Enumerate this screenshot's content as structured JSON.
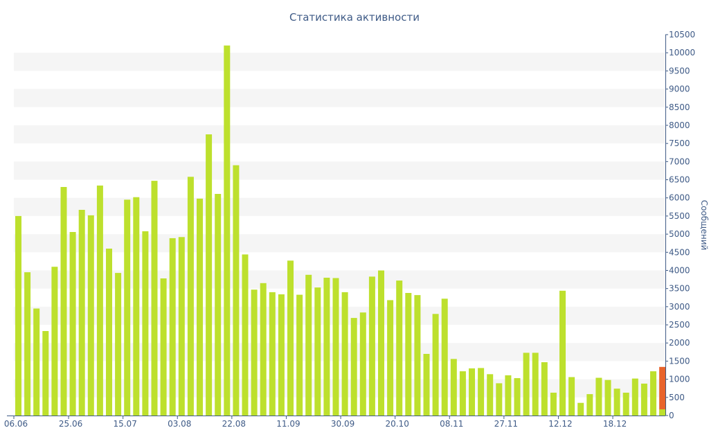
{
  "chart_data": {
    "type": "bar",
    "title": "Статистика активности",
    "ylabel": "Сообщений",
    "ylim": [
      0,
      10500
    ],
    "y_ticks": [
      0,
      500,
      1000,
      1500,
      2000,
      2500,
      3000,
      3500,
      4000,
      4500,
      5000,
      5500,
      6000,
      6500,
      7000,
      7500,
      8000,
      8500,
      9000,
      9500,
      10000,
      10500
    ],
    "y_axis_position": "right",
    "grid": "alternating horizontal bands",
    "x_tick_labels": [
      "06.06",
      "25.06",
      "15.07",
      "03.08",
      "22.08",
      "11.09",
      "30.09",
      "20.10",
      "08.11",
      "27.11",
      "12.12",
      "18.12"
    ],
    "x_tick_bar_index": [
      0,
      6,
      12,
      18,
      24,
      30,
      36,
      42,
      48,
      54,
      60,
      66
    ],
    "values": [
      5500,
      3950,
      2950,
      2330,
      4100,
      6300,
      5060,
      5670,
      5520,
      6340,
      4600,
      3930,
      5950,
      6020,
      5080,
      6470,
      3780,
      4890,
      4920,
      6580,
      5980,
      7750,
      6110,
      10200,
      6900,
      4440,
      3470,
      3650,
      3400,
      3340,
      4270,
      3330,
      3880,
      3530,
      3800,
      3790,
      3400,
      2690,
      2840,
      3830,
      4000,
      3180,
      3720,
      3380,
      3320,
      1700,
      2800,
      3220,
      1560,
      1220,
      1300,
      1310,
      1140,
      890,
      1110,
      1030,
      1730,
      1730,
      1470,
      630,
      3440,
      1060,
      350,
      590,
      1040,
      980,
      740,
      630,
      1020,
      880,
      1220,
      1340
    ],
    "last_bar_highlight_value": 170,
    "colors": {
      "bar": "#bde02d",
      "last_bar": "#e8632b",
      "last_bar_base": "#bde02d",
      "axis_text": "#3e5a86",
      "band": "#f5f5f5"
    }
  }
}
